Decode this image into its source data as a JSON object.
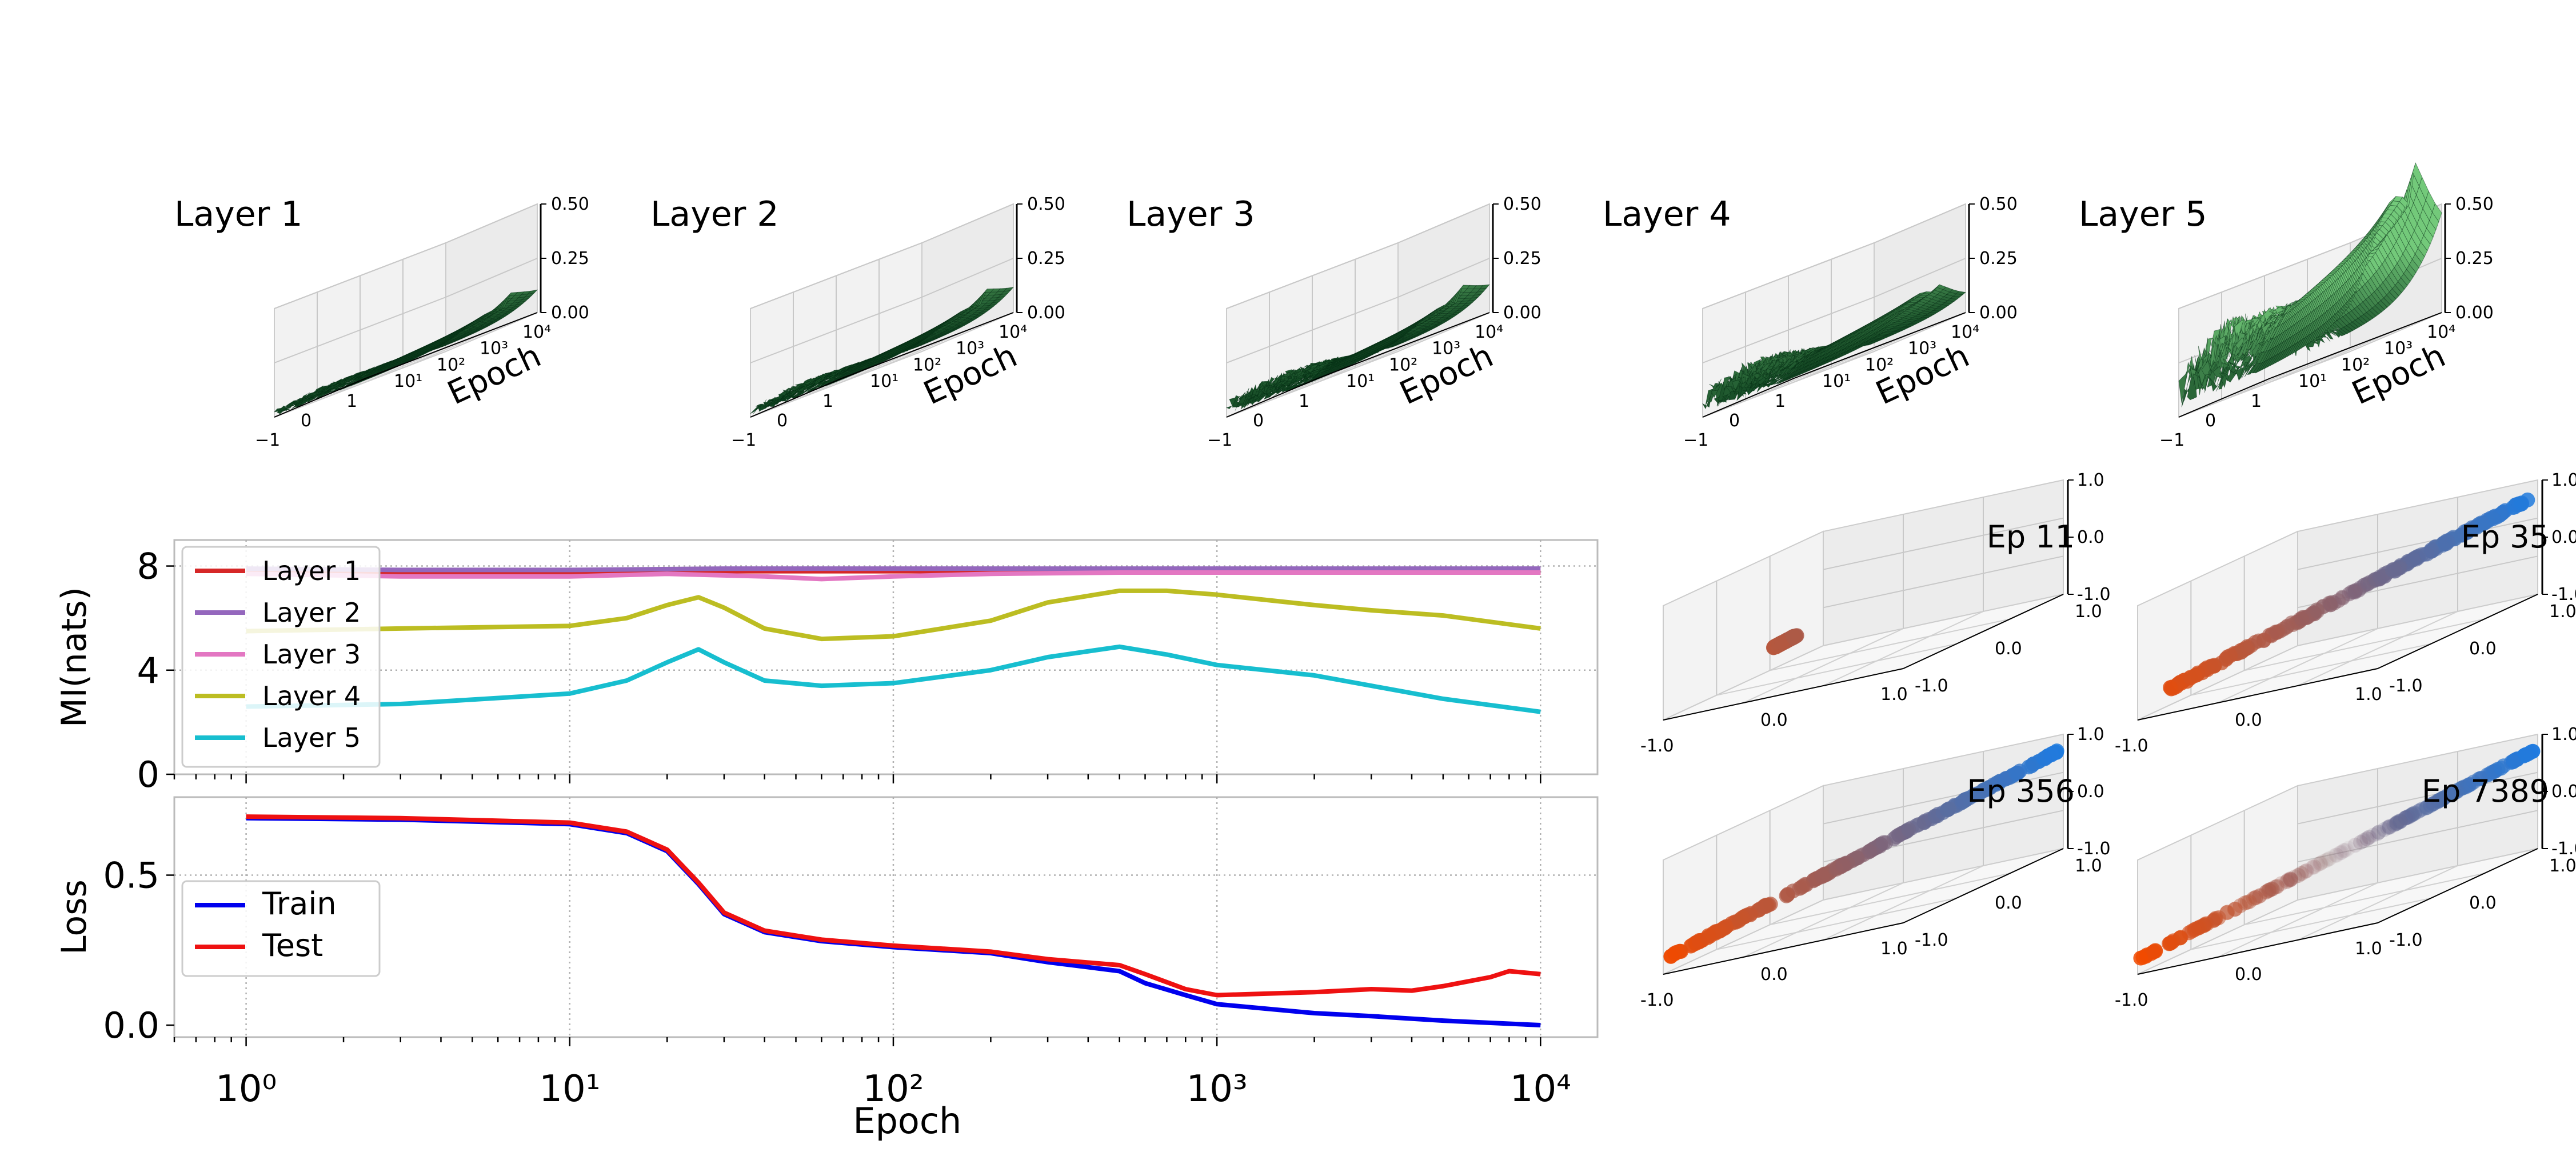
{
  "chart_data": [
    {
      "type": "surface3d",
      "panels": [
        {
          "title": "Layer 1",
          "peak": 0.07,
          "noise": 0.05,
          "ridge_end": 0.09
        },
        {
          "title": "Layer 2",
          "peak": 0.08,
          "noise": 0.07,
          "ridge_end": 0.1
        },
        {
          "title": "Layer 3",
          "peak": 0.09,
          "noise": 0.13,
          "ridge_end": 0.11
        },
        {
          "title": "Layer 4",
          "peak": 0.16,
          "noise": 0.22,
          "ridge_end": 0.06
        },
        {
          "title": "Layer 5",
          "peak": 0.52,
          "noise": 0.35,
          "ridge_end": 0.35
        }
      ],
      "zticks": [
        "0.00",
        "0.25",
        "0.50"
      ],
      "zlim": [
        0,
        0.5
      ],
      "xticks": [
        "−1",
        "0",
        "1"
      ],
      "yticks": [
        "10¹",
        "10²",
        "10³",
        "10⁴"
      ],
      "ylabel": "Epoch",
      "surface_color_dark": "#0b3d1c",
      "surface_color_light": "#73c97a"
    },
    {
      "type": "line",
      "xscale": "log",
      "xlim": [
        0.6,
        15000
      ],
      "ylim": [
        0,
        9
      ],
      "yticks": [
        "0",
        "4",
        "8"
      ],
      "ylabel": "MI(nats)",
      "grid": true,
      "legend": "upper-left",
      "series": [
        {
          "name": "Layer 1",
          "color": "#d62728",
          "x": [
            1,
            3,
            10,
            30,
            100,
            300,
            1000,
            3000,
            10000
          ],
          "y": [
            7.8,
            7.75,
            7.75,
            7.8,
            7.8,
            7.8,
            7.8,
            7.75,
            7.75
          ]
        },
        {
          "name": "Layer 2",
          "color": "#9467bd",
          "x": [
            1,
            3,
            10,
            30,
            100,
            300,
            1000,
            3000,
            10000
          ],
          "y": [
            7.9,
            7.85,
            7.85,
            7.9,
            7.9,
            7.9,
            7.9,
            7.9,
            7.9
          ]
        },
        {
          "name": "Layer 3",
          "color": "#e377c2",
          "x": [
            1,
            3,
            10,
            20,
            40,
            60,
            100,
            200,
            500,
            1000,
            3000,
            10000
          ],
          "y": [
            7.7,
            7.6,
            7.6,
            7.7,
            7.6,
            7.5,
            7.6,
            7.7,
            7.75,
            7.75,
            7.75,
            7.75
          ]
        },
        {
          "name": "Layer 4",
          "color": "#bcbd22",
          "x": [
            1,
            3,
            10,
            15,
            20,
            25,
            30,
            40,
            60,
            100,
            200,
            300,
            500,
            700,
            1000,
            2000,
            3000,
            5000,
            10000
          ],
          "y": [
            5.5,
            5.6,
            5.7,
            6.0,
            6.5,
            6.8,
            6.4,
            5.6,
            5.2,
            5.3,
            5.9,
            6.6,
            7.05,
            7.05,
            6.9,
            6.5,
            6.3,
            6.1,
            5.6
          ]
        },
        {
          "name": "Layer 5",
          "color": "#17becf",
          "x": [
            1,
            3,
            10,
            15,
            20,
            25,
            30,
            40,
            60,
            100,
            200,
            300,
            500,
            700,
            1000,
            2000,
            3000,
            5000,
            10000
          ],
          "y": [
            2.6,
            2.7,
            3.1,
            3.6,
            4.3,
            4.8,
            4.3,
            3.6,
            3.4,
            3.5,
            4.0,
            4.5,
            4.9,
            4.6,
            4.2,
            3.8,
            3.4,
            2.9,
            2.4
          ]
        }
      ]
    },
    {
      "type": "line",
      "xscale": "log",
      "xlim": [
        0.6,
        15000
      ],
      "ylim": [
        -0.04,
        0.76
      ],
      "yticks": [
        "0.0",
        "0.5"
      ],
      "ylabel": "Loss",
      "xlabel": "Epoch",
      "xticks": [
        "10⁰",
        "10¹",
        "10²",
        "10³",
        "10⁴"
      ],
      "grid": true,
      "legend": "center-left",
      "series": [
        {
          "name": "Train",
          "color": "#0000ee",
          "x": [
            1,
            3,
            10,
            15,
            20,
            25,
            30,
            40,
            60,
            100,
            200,
            300,
            500,
            600,
            800,
            1000,
            2000,
            3000,
            5000,
            10000
          ],
          "y": [
            0.69,
            0.685,
            0.67,
            0.64,
            0.58,
            0.47,
            0.37,
            0.31,
            0.28,
            0.26,
            0.24,
            0.21,
            0.18,
            0.14,
            0.1,
            0.07,
            0.04,
            0.03,
            0.015,
            0.0
          ]
        },
        {
          "name": "Test",
          "color": "#ee1111",
          "x": [
            1,
            3,
            10,
            15,
            20,
            25,
            30,
            40,
            60,
            100,
            200,
            300,
            500,
            600,
            800,
            1000,
            2000,
            3000,
            4000,
            5000,
            7000,
            8000,
            10000
          ],
          "y": [
            0.695,
            0.69,
            0.675,
            0.645,
            0.585,
            0.475,
            0.375,
            0.315,
            0.285,
            0.265,
            0.245,
            0.22,
            0.2,
            0.17,
            0.12,
            0.1,
            0.11,
            0.12,
            0.115,
            0.13,
            0.16,
            0.18,
            0.17
          ]
        }
      ]
    },
    {
      "type": "scatter3d",
      "panels": [
        {
          "title": "Ep 11",
          "x_range": [
            0.35,
            0.45
          ],
          "spread": 0.02,
          "fade": 0.0
        },
        {
          "title": "Ep 35",
          "x_range": [
            -0.95,
            0.85
          ],
          "spread": 0.05,
          "fade": 0.3
        },
        {
          "title": "Ep 356",
          "x_range": [
            -1.0,
            1.0
          ],
          "spread": 0.03,
          "fade": 0.2
        },
        {
          "title": "Ep 7389",
          "x_range": [
            -1.0,
            1.0
          ],
          "spread": 0.02,
          "fade": 0.75
        }
      ],
      "ticks": [
        "-1.0",
        "0.0",
        "1.0"
      ],
      "colors": {
        "positive": "#1e7be0",
        "negative": "#f04a00"
      }
    }
  ]
}
